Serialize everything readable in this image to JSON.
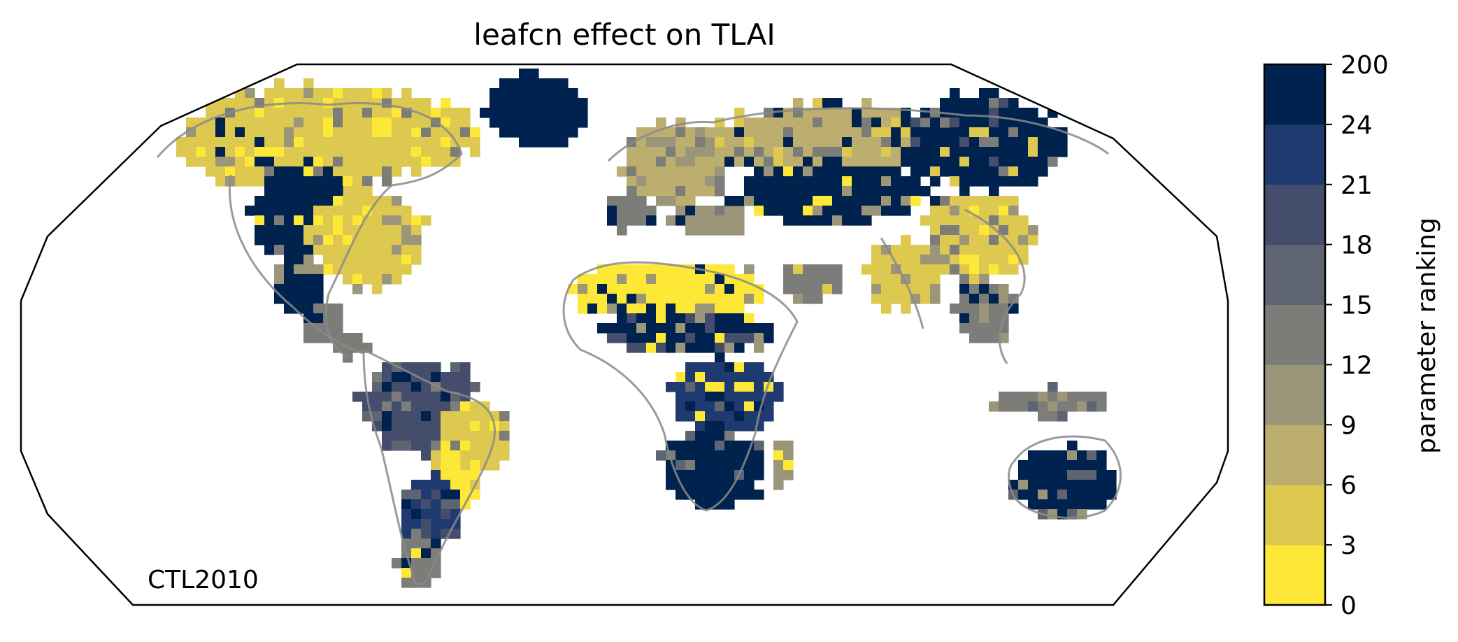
{
  "figure": {
    "title": "leafcn effect on TLAI",
    "panel_label": "CTL2010",
    "projection": "Robinson",
    "colors": {
      "land_outline": "#8a8a8a",
      "map_border": "#000000",
      "background": "#ffffff"
    }
  },
  "colorbar": {
    "label": "parameter ranking",
    "ticks": [
      "0",
      "3",
      "6",
      "9",
      "12",
      "15",
      "18",
      "21",
      "24",
      "200"
    ],
    "bins": [
      {
        "range": "0-3",
        "color": "#fde737"
      },
      {
        "range": "3-6",
        "color": "#ddc850"
      },
      {
        "range": "6-9",
        "color": "#bcae6e"
      },
      {
        "range": "9-12",
        "color": "#9b957a"
      },
      {
        "range": "12-15",
        "color": "#7c7c78"
      },
      {
        "range": "15-18",
        "color": "#5f6472"
      },
      {
        "range": "18-21",
        "color": "#444e6c"
      },
      {
        "range": "21-24",
        "color": "#1f3a70"
      },
      {
        "range": "24-200",
        "color": "#00224e"
      }
    ]
  },
  "chart_data": {
    "type": "heatmap",
    "title": "leafcn effect on TLAI",
    "colorbar_label": "parameter ranking",
    "bin_edges": [
      0,
      3,
      6,
      9,
      12,
      15,
      18,
      21,
      24,
      200
    ],
    "regions": [
      {
        "name": "Greenland",
        "ranking_bin": "24-200"
      },
      {
        "name": "Canada",
        "ranking_bin": "0-6"
      },
      {
        "name": "Western USA",
        "ranking_bin": "24-200"
      },
      {
        "name": "Eastern USA",
        "ranking_bin": "3-6"
      },
      {
        "name": "Amazon",
        "ranking_bin": "15-24"
      },
      {
        "name": "Eastern Brazil",
        "ranking_bin": "0-3"
      },
      {
        "name": "Sahara",
        "ranking_bin": "0-3"
      },
      {
        "name": "Sahel",
        "ranking_bin": "18-200"
      },
      {
        "name": "Southern Africa",
        "ranking_bin": "24-200"
      },
      {
        "name": "Europe",
        "ranking_bin": "3-12"
      },
      {
        "name": "Central Asia",
        "ranking_bin": "24-200"
      },
      {
        "name": "Siberia",
        "ranking_bin": "3-6"
      },
      {
        "name": "China",
        "ranking_bin": "0-6"
      },
      {
        "name": "India",
        "ranking_bin": "3-6"
      },
      {
        "name": "Southeast Asia",
        "ranking_bin": "9-15"
      },
      {
        "name": "Australia",
        "ranking_bin": "24-200"
      }
    ]
  }
}
